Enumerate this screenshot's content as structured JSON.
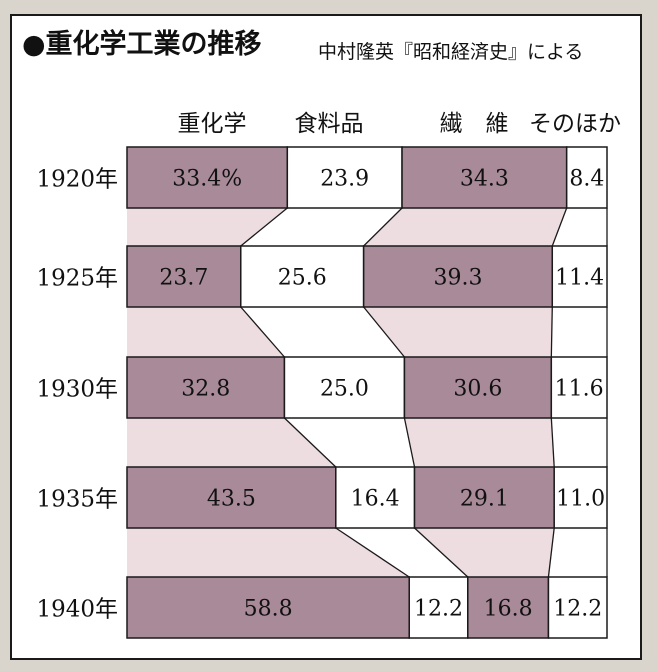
{
  "title": "●重化学工業の推移",
  "source": "中村隆英『昭和経済史』による",
  "colors": {
    "shaded": "#a88a98",
    "connector": "#eddde1",
    "white": "#ffffff",
    "line": "#1a1a1a"
  },
  "chart_data": {
    "type": "bar",
    "stacked": true,
    "orientation": "horizontal",
    "normalized": "100%",
    "categories": [
      "1920年",
      "1925年",
      "1930年",
      "1935年",
      "1940年"
    ],
    "series": [
      {
        "name": "重化学",
        "values": [
          33.4,
          23.7,
          32.8,
          43.5,
          58.8
        ],
        "labels": [
          "33.4%",
          "23.7",
          "32.8",
          "43.5",
          "58.8"
        ],
        "shaded": true
      },
      {
        "name": "食料品",
        "values": [
          23.9,
          25.6,
          25.0,
          16.4,
          12.2
        ],
        "labels": [
          "23.9",
          "25.6",
          "25.0",
          "16.4",
          "12.2"
        ],
        "shaded": false
      },
      {
        "name": "繊　維",
        "values": [
          34.3,
          39.3,
          30.6,
          29.1,
          16.8
        ],
        "labels": [
          "34.3",
          "39.3",
          "30.6",
          "29.1",
          "16.8"
        ],
        "shaded": true
      },
      {
        "name": "そのほか",
        "values": [
          8.4,
          11.4,
          11.6,
          11.0,
          12.2
        ],
        "labels": [
          "8.4",
          "11.4",
          "11.6",
          "11.0",
          "12.2"
        ],
        "shaded": false
      }
    ]
  }
}
